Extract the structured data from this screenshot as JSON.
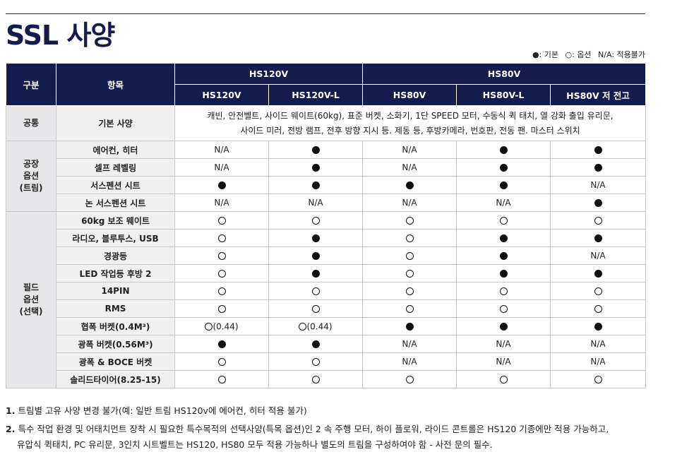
{
  "title": "SSL 사양",
  "legend": {
    "standard": "●: 기본",
    "option": "○: 옵션",
    "na": "N/A: 적용불가"
  },
  "header": {
    "group_col": "구분",
    "item_col": "항목",
    "families": [
      "HS120V",
      "HS80V"
    ],
    "models": [
      "HS120V",
      "HS120V-L",
      "HS80V",
      "HS80V-L",
      "HS80V 저 전고"
    ]
  },
  "groups": [
    {
      "label": "공통"
    },
    {
      "label": "공장\n옵션\n(트림)"
    },
    {
      "label": "필드\n옵션\n(선택)"
    }
  ],
  "common": {
    "item": "기본 사양",
    "line1": "캐빈, 안전벨트, 사이드 웨이트(60kg), 표준 버켓, 소화기, 1단 SPEED 모터, 수동식 퀵 태치, 열 강화 출입 유리문,",
    "line2": "사이드 미러, 전방 램프, 전후 방향 지시 등. 제동 등, 후방카메라, 번호판, 전동 팬. 마스터 스위치"
  },
  "rows": [
    {
      "group": 1,
      "item": "에어컨, 히터",
      "values": [
        "N/A",
        "●",
        "N/A",
        "●",
        "●"
      ]
    },
    {
      "group": 1,
      "item": "셀프 레벨링",
      "values": [
        "N/A",
        "●",
        "N/A",
        "●",
        "●"
      ]
    },
    {
      "group": 1,
      "item": "서스펜션 시트",
      "values": [
        "●",
        "●",
        "●",
        "●",
        "N/A"
      ]
    },
    {
      "group": 1,
      "item": "논 서스펜션 시트",
      "values": [
        "N/A",
        "N/A",
        "N/A",
        "N/A",
        "●"
      ]
    },
    {
      "group": 2,
      "item": "60kg 보조 웨이트",
      "values": [
        "○",
        "○",
        "○",
        "○",
        "○"
      ]
    },
    {
      "group": 2,
      "item": "라디오, 블루투스, USB",
      "values": [
        "○",
        "●",
        "○",
        "●",
        "●"
      ]
    },
    {
      "group": 2,
      "item": "경광등",
      "values": [
        "○",
        "●",
        "○",
        "●",
        "N/A"
      ]
    },
    {
      "group": 2,
      "item": "LED 작업등 후방 2",
      "values": [
        "○",
        "●",
        "○",
        "●",
        "●"
      ]
    },
    {
      "group": 2,
      "item": "14PIN",
      "values": [
        "○",
        "○",
        "○",
        "○",
        "○"
      ]
    },
    {
      "group": 2,
      "item": "RMS",
      "values": [
        "○",
        "○",
        "○",
        "○",
        "○"
      ]
    },
    {
      "group": 2,
      "item": "협폭 버켓(0.4M³)",
      "values": [
        "○(0.44)",
        "○(0.44)",
        "●",
        "●",
        "●"
      ]
    },
    {
      "group": 2,
      "item": "광폭 버켓(0.56M³)",
      "values": [
        "●",
        "●",
        "N/A",
        "N/A",
        "N/A"
      ]
    },
    {
      "group": 2,
      "item": "광폭 & BOCE 버켓",
      "values": [
        "○",
        "○",
        "N/A",
        "N/A",
        "N/A"
      ]
    },
    {
      "group": 2,
      "item": "솔리드타이어(8.25-15)",
      "values": [
        "○",
        "○",
        "○",
        "○",
        "○"
      ]
    }
  ],
  "notes": [
    {
      "num": "1.",
      "text": "트림별 고유 사양 변경 불가(예: 일반 트림 HS120v에 에어컨, 히터 적용 불가)"
    },
    {
      "num": "2.",
      "text": "특수 작업 환경 및 어태치먼트 장착 시 필요한 특수목적의 선택사양(특목 옵션)인 2 속 주행 모터, 하이 플로워, 라이드 콘트롤은 HS120 기종에만 적용 가능하고,",
      "cont": "유압식 퀵태치, PC 유리문, 3인치 시트벨트는 HS120, HS80 모두 적용 가능하나 별도의 트림을 구성하여야 함 - 사전 문의 필수."
    }
  ],
  "colors": {
    "header_bg": "#141b4d",
    "group_bg": "#e7e7e9",
    "item_bg": "#f0f0f1"
  }
}
